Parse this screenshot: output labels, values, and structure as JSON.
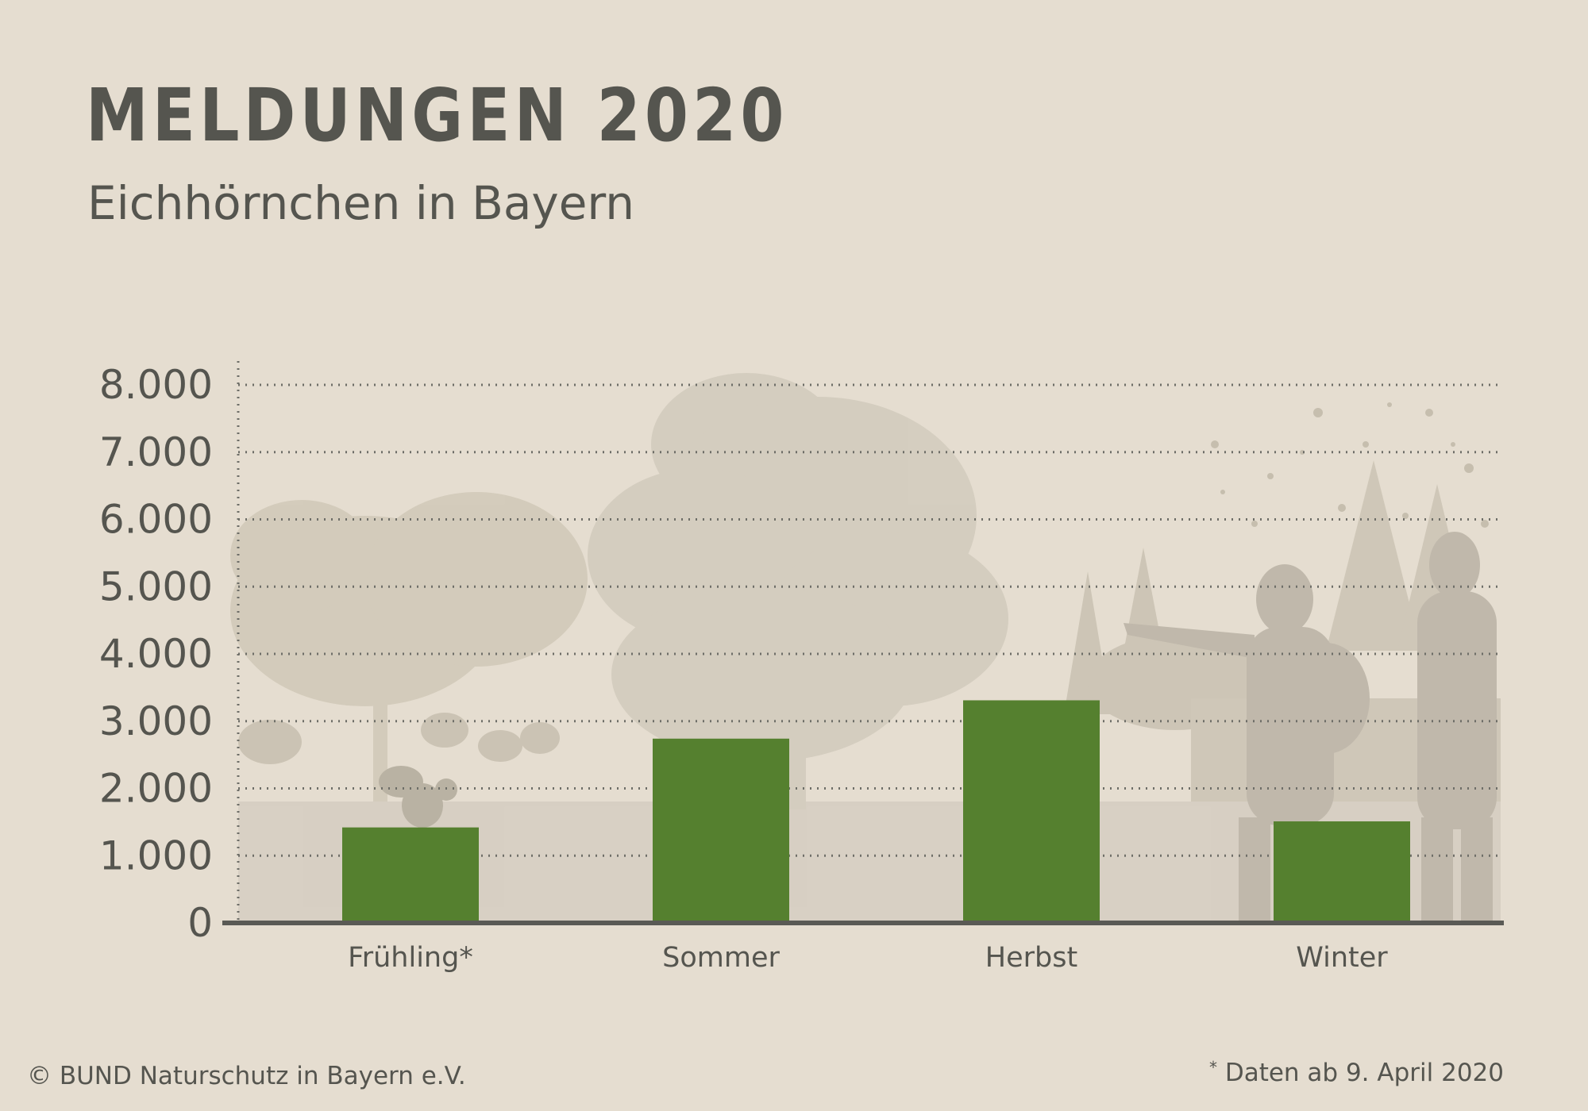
{
  "header": {
    "title": "MELDUNGEN 2020",
    "subtitle": "Eichhörnchen in Bayern"
  },
  "footer": {
    "copyright": "© BUND Naturschutz in Bayern e.V.",
    "footnote_mark": "*",
    "footnote_text": " Daten ab 9. April 2020"
  },
  "colors": {
    "background": "#e5ddd0",
    "bar": "#55802f",
    "text": "#55554f",
    "grid": "#6e6e68",
    "axis": "#5a5a55",
    "silhouette": "#bfb8aa"
  },
  "chart_data": {
    "type": "bar",
    "title": "MELDUNGEN 2020",
    "subtitle": "Eichhörnchen in Bayern",
    "categories": [
      "Frühling*",
      "Sommer",
      "Herbst",
      "Winter"
    ],
    "values": [
      1420,
      2740,
      3310,
      1510
    ],
    "ylim": [
      0,
      8000
    ],
    "yticks": [
      0,
      1000,
      2000,
      3000,
      4000,
      5000,
      6000,
      7000,
      8000
    ],
    "ytick_labels": [
      "0",
      "1.000",
      "2.000",
      "3.000",
      "4.000",
      "5.000",
      "6.000",
      "7.000",
      "8.000"
    ],
    "xlabel": "",
    "ylabel": "",
    "grid": true,
    "legend": "none"
  }
}
